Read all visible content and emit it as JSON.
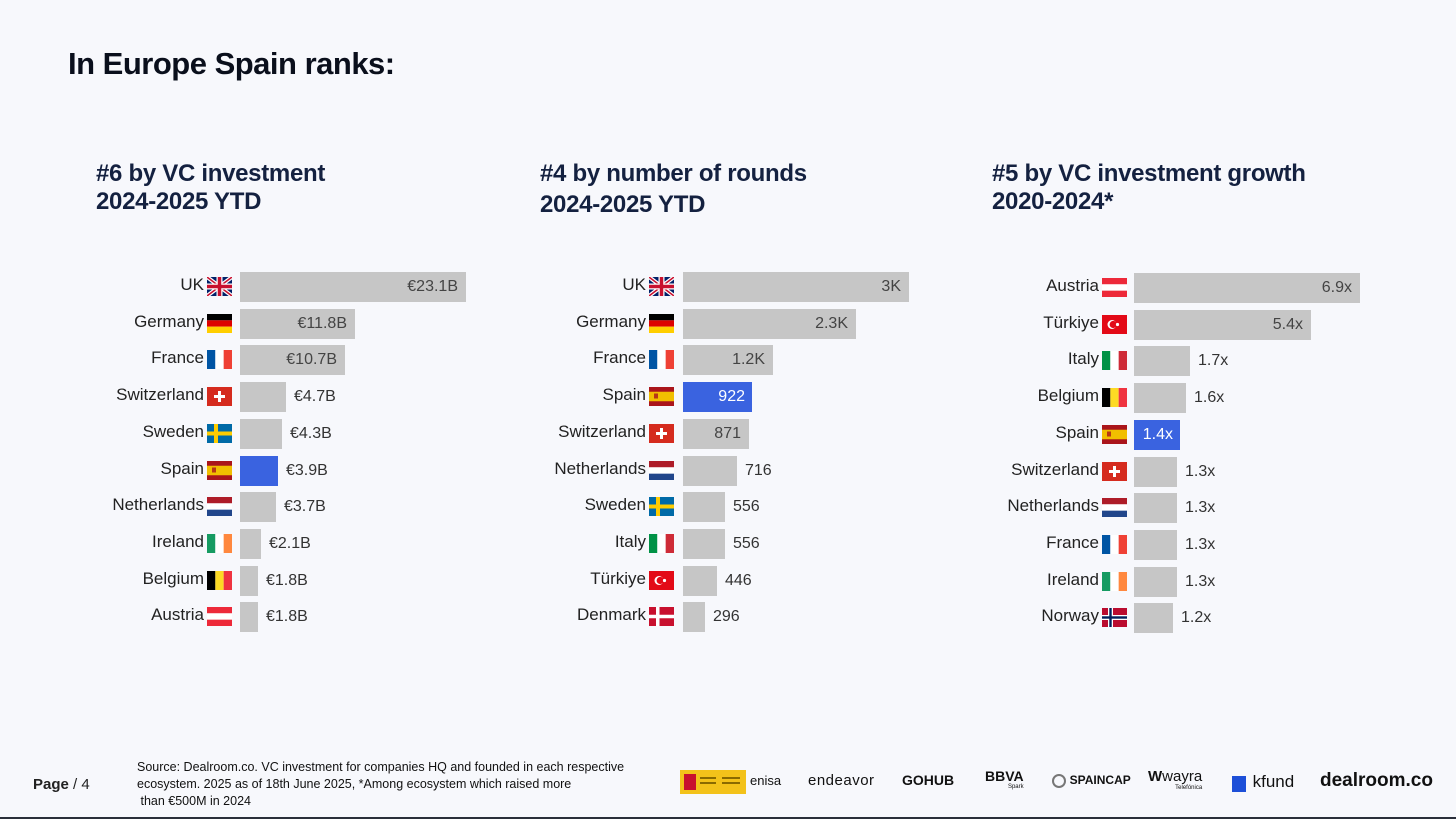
{
  "title": "In Europe Spain ranks:",
  "chart_data": [
    {
      "type": "bar",
      "orientation": "horizontal",
      "title_line1": "#6 by VC investment",
      "title_line2": "2024-2025 YTD",
      "unit": "EUR billions",
      "max": 23.1,
      "categories": [
        "UK",
        "Germany",
        "France",
        "Switzerland",
        "Sweden",
        "Spain",
        "Netherlands",
        "Ireland",
        "Belgium",
        "Austria"
      ],
      "flags": [
        "uk",
        "de",
        "fr",
        "ch",
        "se",
        "es",
        "nl",
        "ie",
        "be",
        "at"
      ],
      "values": [
        23.1,
        11.8,
        10.7,
        4.7,
        4.3,
        3.9,
        3.7,
        2.1,
        1.8,
        1.8
      ],
      "labels": [
        "€23.1B",
        "€11.8B",
        "€10.7B",
        "€4.7B",
        "€4.3B",
        "€3.9B",
        "€3.7B",
        "€2.1B",
        "€1.8B",
        "€1.8B"
      ],
      "highlight": "Spain"
    },
    {
      "type": "bar",
      "orientation": "horizontal",
      "title_line1": "#4 by number of rounds",
      "title_line2": "2024-2025 YTD",
      "unit": "rounds",
      "max": 3000,
      "categories": [
        "UK",
        "Germany",
        "France",
        "Spain",
        "Switzerland",
        "Netherlands",
        "Sweden",
        "Italy",
        "Türkiye",
        "Denmark"
      ],
      "flags": [
        "uk",
        "de",
        "fr",
        "es",
        "ch",
        "nl",
        "se",
        "it",
        "tr",
        "dk"
      ],
      "values": [
        3000,
        2300,
        1200,
        922,
        871,
        716,
        556,
        556,
        446,
        296
      ],
      "labels": [
        "3K",
        "2.3K",
        "1.2K",
        "922",
        "871",
        "716",
        "556",
        "556",
        "446",
        "296"
      ],
      "highlight": "Spain"
    },
    {
      "type": "bar",
      "orientation": "horizontal",
      "title_line1": "#5 by VC investment growth",
      "title_line2": "2020-2024*",
      "unit": "x growth",
      "max": 6.9,
      "categories": [
        "Austria",
        "Türkiye",
        "Italy",
        "Belgium",
        "Spain",
        "Switzerland",
        "Netherlands",
        "France",
        "Ireland",
        "Norway"
      ],
      "flags": [
        "at",
        "tr",
        "it",
        "be",
        "es",
        "ch",
        "nl",
        "fr",
        "ie",
        "no"
      ],
      "values": [
        6.9,
        5.4,
        1.7,
        1.6,
        1.4,
        1.3,
        1.3,
        1.3,
        1.3,
        1.2
      ],
      "labels": [
        "6.9x",
        "5.4x",
        "1.7x",
        "1.6x",
        "1.4x",
        "1.3x",
        "1.3x",
        "1.3x",
        "1.3x",
        "1.2x"
      ],
      "highlight": "Spain"
    }
  ],
  "colors": {
    "bar": "#c6c6c6",
    "highlight": "#3a63e0",
    "title": "#142140"
  },
  "footer": {
    "page_label": "Page",
    "page_number": "/ 4",
    "source_line1": "Source:  Dealroom.co. VC investment for companies HQ and founded in each respective",
    "source_line2": "ecosystem. 2025 as of 18th June 2025, *Among ecosystem which raised more",
    "source_line3": " than €500M in 2024"
  },
  "logos": [
    "enisa",
    "endeavor",
    "GOHUB",
    "BBVA",
    "Spark",
    "SPAINCAP",
    "wayra",
    "Telefónica",
    "kfund",
    "dealroom.co"
  ]
}
